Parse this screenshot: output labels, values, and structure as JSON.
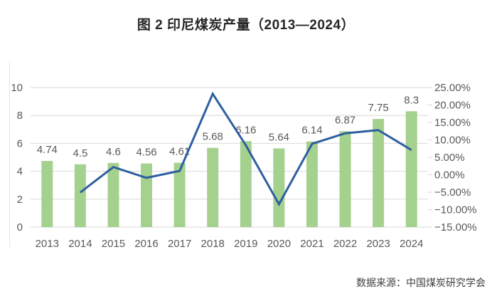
{
  "title": "图 2 印尼煤炭产量（2013—2024）",
  "source": "数据来源：中国煤炭研究学会",
  "colors": {
    "bar": "#a5d18f",
    "line": "#2e5fa0",
    "gridline": "#d9d9d9",
    "axis_text": "#595959"
  },
  "chart_data": {
    "type": "combo",
    "title": "图 2 印尼煤炭产量（2013—2024）",
    "categories": [
      "2013",
      "2014",
      "2015",
      "2016",
      "2017",
      "2018",
      "2019",
      "2020",
      "2021",
      "2022",
      "2023",
      "2024"
    ],
    "series": [
      {
        "name": "coal-production-bars",
        "type": "bar",
        "axis": "left",
        "color": "#a5d18f",
        "values": [
          4.74,
          4.5,
          4.6,
          4.56,
          4.61,
          5.68,
          6.16,
          5.64,
          6.14,
          6.87,
          7.75,
          8.3
        ],
        "labels": [
          "4.74",
          "4.5",
          "4.6",
          "4.56",
          "4.61",
          "5.68",
          "6.16",
          "5.64",
          "6.14",
          "6.87",
          "7.75",
          "8.3"
        ]
      },
      {
        "name": "yoy-growth-line",
        "type": "line",
        "axis": "right",
        "color": "#2e5fa0",
        "values": [
          null,
          -5.06,
          2.22,
          -0.87,
          1.1,
          23.21,
          8.45,
          -8.44,
          8.87,
          11.89,
          12.81,
          7.1
        ]
      }
    ],
    "left_axis": {
      "min": 0,
      "max": 10,
      "tick_values": [
        0,
        2,
        4,
        6,
        8,
        10
      ],
      "tick_labels": [
        "0",
        "2",
        "4",
        "6",
        "8",
        "10"
      ]
    },
    "right_axis": {
      "min": -15,
      "max": 25,
      "tick_values": [
        25,
        20,
        15,
        10,
        5,
        0,
        -5,
        -10,
        -15
      ],
      "tick_labels": [
        "25.00%",
        "20.00%",
        "15.00%",
        "10.00%",
        "5.00%",
        "0.00%",
        "−5.00%",
        "−10.00%",
        "−15.00%"
      ]
    },
    "grid": true,
    "legend": "none"
  }
}
